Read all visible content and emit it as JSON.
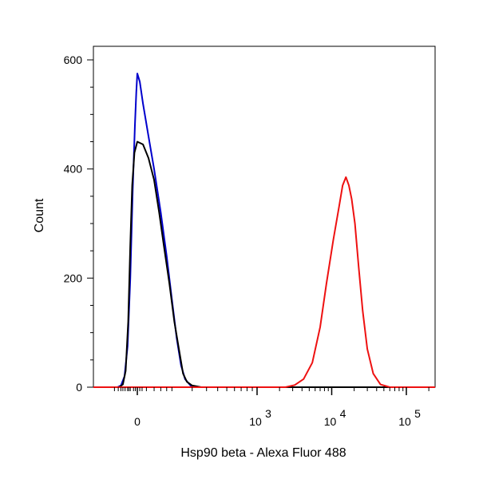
{
  "chart_data": {
    "type": "line",
    "title": "",
    "xlabel": "Hsp90 beta - Alexa Fluor 488",
    "ylabel": "Count",
    "x_scale": "biexponential",
    "xlim": [
      -200,
      200000
    ],
    "ylim": [
      0,
      625
    ],
    "y_ticks": [
      0,
      200,
      400,
      600
    ],
    "x_ticks": [
      {
        "value": 0,
        "label": "0"
      },
      {
        "value": 1000,
        "base": "10",
        "exp": "3"
      },
      {
        "value": 10000,
        "base": "10",
        "exp": "4"
      },
      {
        "value": 100000,
        "base": "10",
        "exp": "5"
      }
    ],
    "grid": false,
    "series": [
      {
        "color": "#0000cc",
        "points": [
          [
            -160,
            0
          ],
          [
            -120,
            3
          ],
          [
            -85,
            20
          ],
          [
            -60,
            75
          ],
          [
            -40,
            200
          ],
          [
            -25,
            360
          ],
          [
            -12,
            480
          ],
          [
            -5,
            540
          ],
          [
            0,
            575
          ],
          [
            5,
            560
          ],
          [
            12,
            520
          ],
          [
            25,
            460
          ],
          [
            40,
            400
          ],
          [
            60,
            320
          ],
          [
            80,
            240
          ],
          [
            100,
            160
          ],
          [
            120,
            90
          ],
          [
            140,
            40
          ],
          [
            160,
            15
          ],
          [
            190,
            3
          ],
          [
            220,
            0
          ]
        ]
      },
      {
        "color": "#000000",
        "points": [
          [
            -140,
            0
          ],
          [
            -100,
            5
          ],
          [
            -75,
            30
          ],
          [
            -55,
            120
          ],
          [
            -40,
            260
          ],
          [
            -28,
            370
          ],
          [
            -15,
            430
          ],
          [
            0,
            450
          ],
          [
            12,
            445
          ],
          [
            25,
            420
          ],
          [
            40,
            380
          ],
          [
            55,
            320
          ],
          [
            70,
            260
          ],
          [
            90,
            190
          ],
          [
            110,
            120
          ],
          [
            130,
            70
          ],
          [
            150,
            25
          ],
          [
            170,
            10
          ],
          [
            200,
            3
          ],
          [
            260,
            0
          ]
        ]
      },
      {
        "color": "#ee1111",
        "points": [
          [
            2400,
            0
          ],
          [
            3200,
            4
          ],
          [
            4200,
            15
          ],
          [
            5500,
            45
          ],
          [
            7000,
            110
          ],
          [
            8500,
            190
          ],
          [
            10500,
            270
          ],
          [
            12500,
            330
          ],
          [
            14000,
            370
          ],
          [
            15500,
            385
          ],
          [
            17000,
            370
          ],
          [
            18500,
            345
          ],
          [
            20500,
            300
          ],
          [
            23000,
            220
          ],
          [
            26000,
            140
          ],
          [
            30000,
            70
          ],
          [
            36000,
            25
          ],
          [
            45000,
            5
          ],
          [
            60000,
            0
          ]
        ]
      }
    ]
  }
}
